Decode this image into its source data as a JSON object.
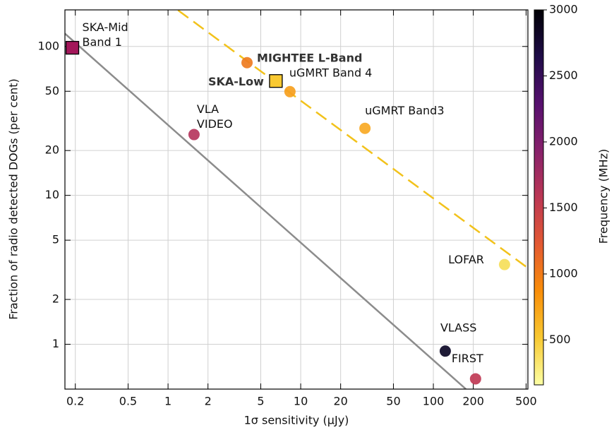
{
  "chart_data": {
    "type": "scatter",
    "xlabel": "1σ sensitivity (μJy)",
    "ylabel": "Fraction of radio detected DOGs (per cent)",
    "xlog": true,
    "ylog": true,
    "grid": true,
    "xlim": [
      0.167,
      516
    ],
    "ylim": [
      0.5,
      176
    ],
    "xticks": [
      0.2,
      0.5,
      1,
      2,
      5,
      10,
      20,
      50,
      100,
      200,
      500
    ],
    "yticks": [
      1,
      2,
      5,
      10,
      20,
      50,
      100
    ],
    "lines": [
      {
        "x": [
          0.167,
          176
        ],
        "y": [
          122,
          0.5
        ],
        "color": "#8c8c8c",
        "dashed": false
      },
      {
        "x": [
          1.19,
          516
        ],
        "y": [
          175,
          3.25
        ],
        "color": "#f2c21b",
        "dashed": true
      }
    ],
    "points": [
      {
        "label": [
          "SKA-Mid",
          "Band 1"
        ],
        "x": 0.19,
        "y": 98,
        "color": "#a3175a",
        "marker": "square",
        "bold": false
      },
      {
        "label": [
          "MIGHTEE L-Band"
        ],
        "x": 3.94,
        "y": 77.8,
        "color": "#ee7b1f",
        "marker": "circle",
        "bold": true
      },
      {
        "label": [
          "SKA-Low"
        ],
        "x": 6.5,
        "y": 58.6,
        "color": "#f9c932",
        "marker": "square",
        "bold": true
      },
      {
        "label": [
          "uGMRT Band 4"
        ],
        "x": 8.3,
        "y": 49.7,
        "color": "#f6a01e",
        "marker": "circle",
        "bold": false
      },
      {
        "label": [
          "VLA",
          "VIDEO"
        ],
        "x": 1.57,
        "y": 25.6,
        "color": "#b6365d",
        "marker": "circle",
        "bold": false
      },
      {
        "label": [
          "uGMRT Band3"
        ],
        "x": 30.5,
        "y": 28.2,
        "color": "#f9a924",
        "marker": "circle",
        "bold": false
      },
      {
        "label": [
          "LOFAR"
        ],
        "x": 344,
        "y": 3.43,
        "color": "#f5de5a",
        "marker": "circle",
        "bold": false
      },
      {
        "label": [
          "VLASS"
        ],
        "x": 123,
        "y": 0.9,
        "color": "#0c0826",
        "marker": "circle",
        "bold": false
      },
      {
        "label": [
          "FIRST"
        ],
        "x": 208,
        "y": 0.586,
        "color": "#c03a55",
        "marker": "circle",
        "bold": false
      }
    ],
    "colorbar": {
      "label": "Frequency (MHz)",
      "clim": [
        160,
        3000
      ],
      "ticks": [
        500,
        1000,
        1500,
        2000,
        2500,
        3000
      ],
      "colors": [
        "#fcffa4",
        "#f8c932",
        "#f98e09",
        "#e35932",
        "#bc3754",
        "#87216b",
        "#56106e",
        "#1f0c48",
        "#000004"
      ]
    }
  }
}
